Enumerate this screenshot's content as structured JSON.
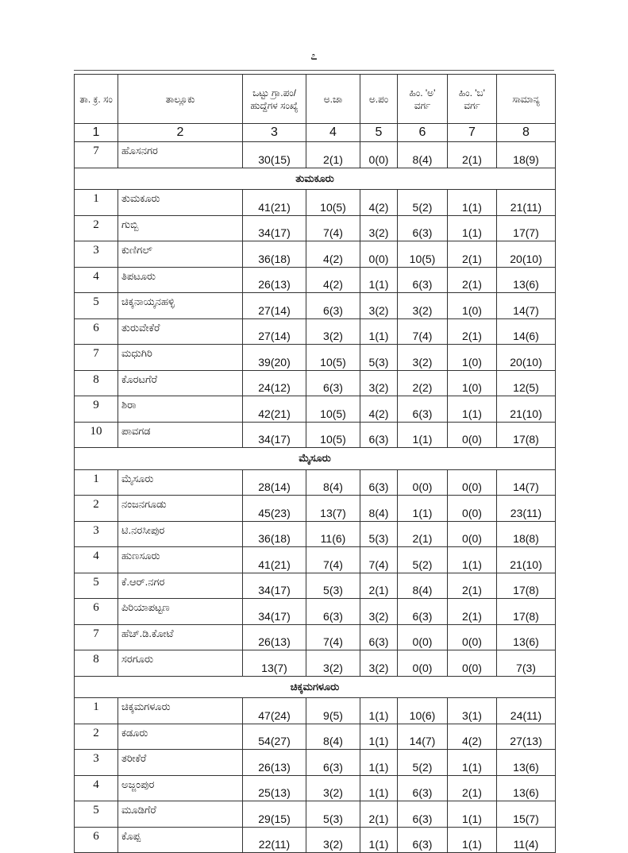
{
  "page_number": "೭",
  "headers": [
    "ತಾ. ಕ್ರ. ಸಂ",
    "ತಾಲ್ಲೂಕು",
    "ಒಟ್ಟು ಗ್ರಾ.ಪಂ/ ಹುದ್ದೆಗಳ ಸಂಖ್ಯೆ",
    "ಅ.ಜಾ",
    "ಅ.ಪಂ",
    "ಹಿಂ. 'ಅ' ವರ್ಗ",
    "ಹಿಂ. 'ಬ' ವರ್ಗ",
    "ಸಾಮಾನ್ಯ"
  ],
  "column_numbers": [
    "1",
    "2",
    "3",
    "4",
    "5",
    "6",
    "7",
    "8"
  ],
  "rows": [
    {
      "section": null,
      "cells": [
        "7",
        "ಹೊಸನಗರ",
        "30(15)",
        "2(1)",
        "0(0)",
        "8(4)",
        "2(1)",
        "18(9)"
      ]
    },
    {
      "section": "ತುಮಕೂರು"
    },
    {
      "cells": [
        "1",
        "ತುಮಕೂರು",
        "41(21)",
        "10(5)",
        "4(2)",
        "5(2)",
        "1(1)",
        "21(11)"
      ]
    },
    {
      "cells": [
        "2",
        "ಗುಬ್ಬಿ",
        "34(17)",
        "7(4)",
        "3(2)",
        "6(3)",
        "1(1)",
        "17(7)"
      ]
    },
    {
      "cells": [
        "3",
        "ಕುಣಿಗಲ್",
        "36(18)",
        "4(2)",
        "0(0)",
        "10(5)",
        "2(1)",
        "20(10)"
      ]
    },
    {
      "cells": [
        "4",
        "ತಿಪಟೂರು",
        "26(13)",
        "4(2)",
        "1(1)",
        "6(3)",
        "2(1)",
        "13(6)"
      ]
    },
    {
      "cells": [
        "5",
        "ಚಿಕ್ಕನಾಯ್ಕನಹಳ್ಳಿ",
        "27(14)",
        "6(3)",
        "3(2)",
        "3(2)",
        "1(0)",
        "14(7)"
      ]
    },
    {
      "cells": [
        "6",
        "ತುರುವೇಕೆರೆ",
        "27(14)",
        "3(2)",
        "1(1)",
        "7(4)",
        "2(1)",
        "14(6)"
      ]
    },
    {
      "cells": [
        "7",
        "ಮಧುಗಿರಿ",
        "39(20)",
        "10(5)",
        "5(3)",
        "3(2)",
        "1(0)",
        "20(10)"
      ]
    },
    {
      "cells": [
        "8",
        "ಕೊರಟಗೆರೆ",
        "24(12)",
        "6(3)",
        "3(2)",
        "2(2)",
        "1(0)",
        "12(5)"
      ]
    },
    {
      "cells": [
        "9",
        "ಶಿರಾ",
        "42(21)",
        "10(5)",
        "4(2)",
        "6(3)",
        "1(1)",
        "21(10)"
      ]
    },
    {
      "cells": [
        "10",
        "ಪಾವಗಡ",
        "34(17)",
        "10(5)",
        "6(3)",
        "1(1)",
        "0(0)",
        "17(8)"
      ]
    },
    {
      "section": "ಮೈಸೂರು"
    },
    {
      "cells": [
        "1",
        "ಮೈಸೂರು",
        "28(14)",
        "8(4)",
        "6(3)",
        "0(0)",
        "0(0)",
        "14(7)"
      ]
    },
    {
      "cells": [
        "2",
        "ನಂಜನಗೂಡು",
        "45(23)",
        "13(7)",
        "8(4)",
        "1(1)",
        "0(0)",
        "23(11)"
      ]
    },
    {
      "cells": [
        "3",
        "ಟಿ.ನರಸೀಪುರ",
        "36(18)",
        "11(6)",
        "5(3)",
        "2(1)",
        "0(0)",
        "18(8)"
      ]
    },
    {
      "cells": [
        "4",
        "ಹುಣಸೂರು",
        "41(21)",
        "7(4)",
        "7(4)",
        "5(2)",
        "1(1)",
        "21(10)"
      ]
    },
    {
      "cells": [
        "5",
        "ಕೆ.ಆರ್.ನಗರ",
        "34(17)",
        "5(3)",
        "2(1)",
        "8(4)",
        "2(1)",
        "17(8)"
      ]
    },
    {
      "cells": [
        "6",
        "ಪಿರಿಯಾಪಟ್ಟಣ",
        "34(17)",
        "6(3)",
        "3(2)",
        "6(3)",
        "2(1)",
        "17(8)"
      ]
    },
    {
      "cells": [
        "7",
        "ಹೆಚ್.ಡಿ.ಕೋಟೆ",
        "26(13)",
        "7(4)",
        "6(3)",
        "0(0)",
        "0(0)",
        "13(6)"
      ]
    },
    {
      "cells": [
        "8",
        "ಸರಗೂರು",
        "13(7)",
        "3(2)",
        "3(2)",
        "0(0)",
        "0(0)",
        "7(3)"
      ]
    },
    {
      "section": "ಚಿಕ್ಕಮಗಳೂರು"
    },
    {
      "cells": [
        "1",
        "ಚಿಕ್ಕಮಗಳೂರು",
        "47(24)",
        "9(5)",
        "1(1)",
        "10(6)",
        "3(1)",
        "24(11)"
      ]
    },
    {
      "cells": [
        "2",
        "ಕಡೂರು",
        "54(27)",
        "8(4)",
        "1(1)",
        "14(7)",
        "4(2)",
        "27(13)"
      ]
    },
    {
      "cells": [
        "3",
        "ತರೀಕೆರೆ",
        "26(13)",
        "6(3)",
        "1(1)",
        "5(2)",
        "1(1)",
        "13(6)"
      ]
    },
    {
      "cells": [
        "4",
        "ಅಜ್ಜಂಪುರ",
        "25(13)",
        "3(2)",
        "1(1)",
        "6(3)",
        "2(1)",
        "13(6)"
      ]
    },
    {
      "cells": [
        "5",
        "ಮೂಡಿಗೆರೆ",
        "29(15)",
        "5(3)",
        "2(1)",
        "6(3)",
        "1(1)",
        "15(7)"
      ]
    },
    {
      "cells": [
        "6",
        "ಕೊಪ್ಪ",
        "22(11)",
        "3(2)",
        "1(1)",
        "6(3)",
        "1(1)",
        "11(4)"
      ]
    }
  ]
}
